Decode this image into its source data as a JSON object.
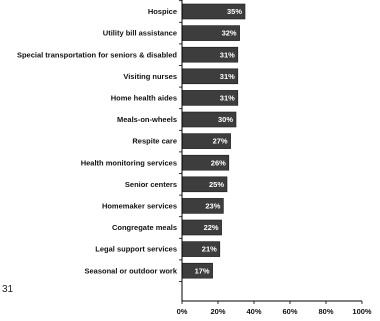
{
  "chart_data": {
    "type": "bar",
    "orientation": "horizontal",
    "categories": [
      "Hospice",
      "Utility bill assistance",
      "Special transportation for seniors & disabled",
      "Visiting nurses",
      "Home health aides",
      "Meals-on-wheels",
      "Respite care",
      "Health monitoring services",
      "Senior centers",
      "Homemaker services",
      "Congregate meals",
      "Legal support services",
      "Seasonal or outdoor work"
    ],
    "values": [
      35,
      32,
      31,
      31,
      31,
      30,
      27,
      26,
      25,
      23,
      22,
      21,
      17
    ],
    "value_labels": [
      "35%",
      "32%",
      "31%",
      "31%",
      "31%",
      "30%",
      "27%",
      "26%",
      "25%",
      "23%",
      "22%",
      "21%",
      "17%"
    ],
    "xlim": [
      0,
      100
    ],
    "xticks": [
      0,
      20,
      40,
      60,
      80,
      100
    ],
    "xtick_labels": [
      "0%",
      "20%",
      "40%",
      "60%",
      "80%",
      "100%"
    ],
    "grid": false,
    "legend": "none",
    "colors": {
      "bar": "#3d3d3d",
      "bar_edge": "#1a1a1a",
      "axis": "#000000",
      "value_text": "#ffffff"
    }
  },
  "page": {
    "number": "31"
  }
}
